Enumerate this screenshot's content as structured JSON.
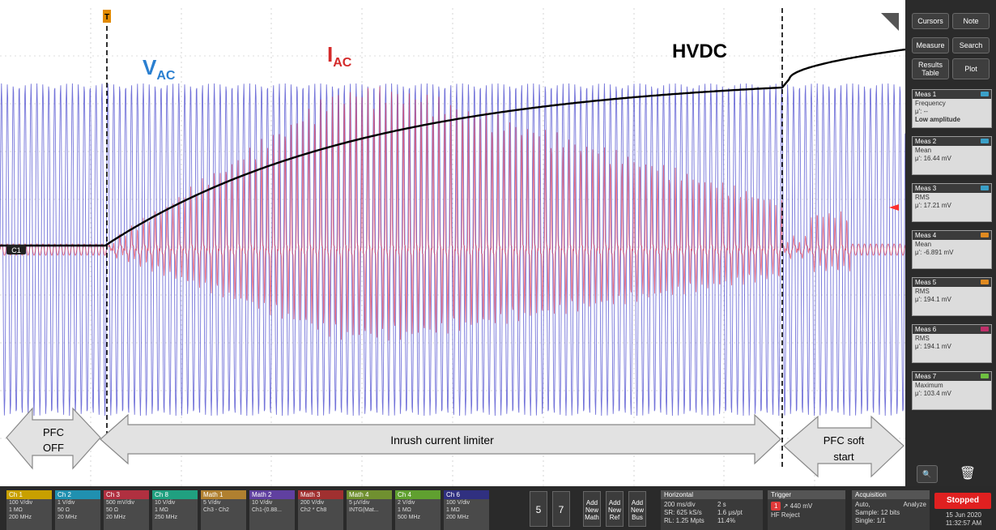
{
  "labels": {
    "vac": {
      "main": "V",
      "sub": "AC"
    },
    "iac": {
      "main": "I",
      "sub": "AC"
    },
    "hvdc": "HVDC",
    "pfc_off": {
      "l1": "PFC",
      "l2": "OFF"
    },
    "limiter": "Inrush current limiter",
    "pfc_soft": {
      "l1": "PFC soft",
      "l2": "start"
    },
    "ch_marker": "C1",
    "trig_marker": "T"
  },
  "colors": {
    "vac": "#4444cc",
    "iac": "#e0304a",
    "hvdc": "#000000",
    "accent": "#ff2a2a"
  },
  "sidebar": {
    "buttons": {
      "cursors": "Cursors",
      "note": "Note",
      "measure": "Measure",
      "search": "Search",
      "results_l1": "Results",
      "results_l2": "Table",
      "plot": "Plot"
    },
    "measurements": [
      {
        "title": "Meas 1",
        "line1": "Frequency",
        "line2": "μ': --",
        "line3": "Low amplitude",
        "tag": "#3aa0c8"
      },
      {
        "title": "Meas 2",
        "line1": "Mean",
        "line2": "μ': 16.44 mV",
        "line3": "",
        "tag": "#3aa0c8"
      },
      {
        "title": "Meas 3",
        "line1": "RMS",
        "line2": "μ': 17.21 mV",
        "line3": "",
        "tag": "#3aa0c8"
      },
      {
        "title": "Meas 4",
        "line1": "Mean",
        "line2": "μ': -6.891 mV",
        "line3": "",
        "tag": "#e08a20"
      },
      {
        "title": "Meas 5",
        "line1": "RMS",
        "line2": "μ': 194.1 mV",
        "line3": "",
        "tag": "#e08a20"
      },
      {
        "title": "Meas 6",
        "line1": "RMS",
        "line2": "μ': 194.1 mV",
        "line3": "",
        "tag": "#c0306a"
      },
      {
        "title": "Meas 7",
        "line1": "Maximum",
        "line2": "μ': 103.4 mV",
        "line3": "",
        "tag": "#6ec040"
      }
    ]
  },
  "bottom": {
    "channels": [
      {
        "name": "Ch 1",
        "color": "#c8a000",
        "l1": "100 V/div",
        "l2": "1 MΩ",
        "l3": "200 MHz"
      },
      {
        "name": "Ch 2",
        "color": "#2090b0",
        "l1": "1 V/div",
        "l2": "50 Ω",
        "l3": "20 MHz"
      },
      {
        "name": "Ch 3",
        "color": "#b03040",
        "l1": "500 mV/div",
        "l2": "50 Ω",
        "l3": "20 MHz"
      },
      {
        "name": "Ch 8",
        "color": "#20a080",
        "l1": "10 V/div",
        "l2": "1 MΩ",
        "l3": "250 MHz"
      },
      {
        "name": "Math 1",
        "color": "#b08030",
        "l1": "5 V/div",
        "l2": "Ch3 - Ch2",
        "l3": ""
      },
      {
        "name": "Math 2",
        "color": "#6040a0",
        "l1": "10 V/div",
        "l2": "Ch1-(0.88...",
        "l3": ""
      },
      {
        "name": "Math 3",
        "color": "#a03030",
        "l1": "200 V/div",
        "l2": "Ch2 * Ch8",
        "l3": ""
      },
      {
        "name": "Math 4",
        "color": "#709030",
        "l1": "5 μV/div",
        "l2": "INTG(Mat...",
        "l3": ""
      },
      {
        "name": "Ch 4",
        "color": "#60a030",
        "l1": "2 V/div",
        "l2": "1 MΩ",
        "l3": "500 MHz"
      },
      {
        "name": "Ch 6",
        "color": "#303080",
        "l1": "100 V/div",
        "l2": "1 MΩ",
        "l3": "200 MHz"
      }
    ],
    "num5": "5",
    "num7": "7",
    "add_math": {
      "l1": "Add",
      "l2": "New",
      "l3": "Math"
    },
    "add_ref": {
      "l1": "Add",
      "l2": "New",
      "l3": "Ref"
    },
    "add_bus": {
      "l1": "Add",
      "l2": "New",
      "l3": "Bus"
    },
    "horizontal": {
      "title": "Horizontal",
      "l1a": "200 ms/div",
      "l1b": "2 s",
      "l2a": "SR: 625 kS/s",
      "l2b": "1.6 μs/pt",
      "l3a": "RL: 1.25 Mpts",
      "l3b": "11.4%"
    },
    "trigger": {
      "title": "Trigger",
      "ch": "1",
      "level": "440 mV",
      "mode": "HF Reject"
    },
    "acquisition": {
      "title": "Acquisition",
      "l1a": "Auto,",
      "l1b": "Analyze",
      "l2": "Sample: 12 bits",
      "l3": "Single: 1/1"
    },
    "status": "Stopped",
    "date": "15 Jun 2020",
    "time": "11:32:57 AM"
  }
}
